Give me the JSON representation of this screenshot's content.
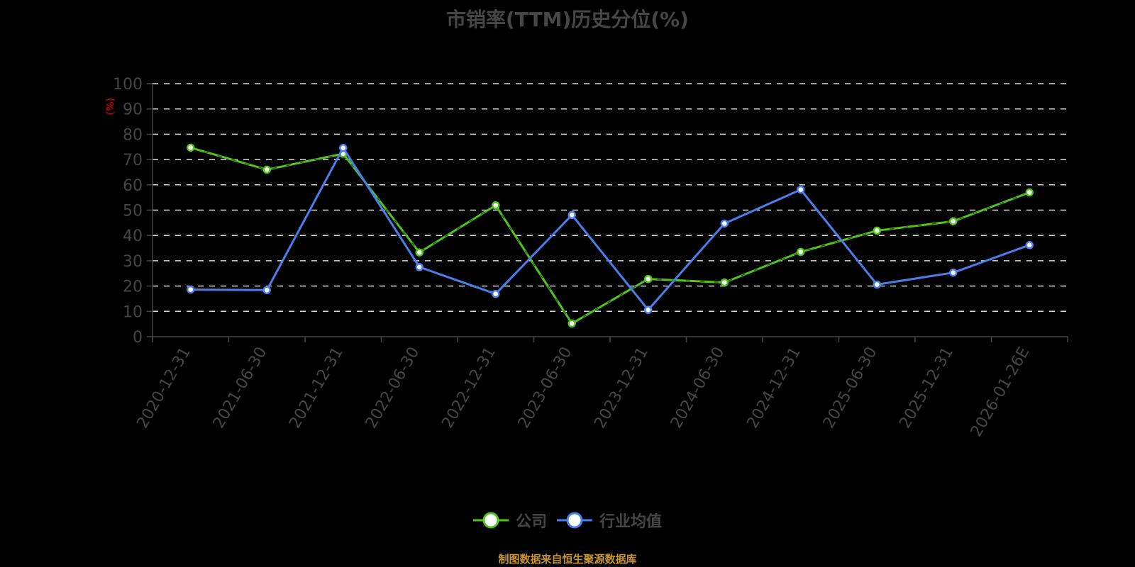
{
  "title": "市销率(TTM)历史分位(%)",
  "footer": "制图数据来自恒生聚源数据库",
  "colors": {
    "background": "#000000",
    "company": "#52c41a",
    "industry": "#4a7ee8",
    "grid": "#d9d9d9",
    "axis": "#464646",
    "text": "#464646",
    "ylabel": "#ff0000",
    "footer": "#c8962c"
  },
  "legend": [
    {
      "name": "公司",
      "color": "#52c41a"
    },
    {
      "name": "行业均值",
      "color": "#4a7ee8"
    }
  ],
  "chart_data": {
    "type": "line",
    "title": "市销率(TTM)历史分位(%)",
    "xlabel": "",
    "ylabel": "(%)",
    "ylim": [
      0,
      100
    ],
    "yticks": [
      0,
      10,
      20,
      30,
      40,
      50,
      60,
      70,
      80,
      90,
      100
    ],
    "grid": true,
    "legend_position": "bottom",
    "categories": [
      "2020-12-31",
      "2021-06-30",
      "2021-12-31",
      "2022-06-30",
      "2022-12-31",
      "2023-06-30",
      "2023-12-31",
      "2024-06-30",
      "2024-12-31",
      "2025-06-30",
      "2025-12-31",
      "2026-01-26E"
    ],
    "series": [
      {
        "name": "公司",
        "color": "#52c41a",
        "values": [
          74.7,
          66.0,
          72.3,
          33.3,
          51.9,
          5.2,
          22.8,
          21.4,
          33.5,
          41.9,
          45.6,
          57.0
        ]
      },
      {
        "name": "行业均值",
        "color": "#4a7ee8",
        "values": [
          18.6,
          18.4,
          74.6,
          27.5,
          16.9,
          48.1,
          10.6,
          44.7,
          58.1,
          20.6,
          25.3,
          36.2
        ]
      }
    ]
  }
}
